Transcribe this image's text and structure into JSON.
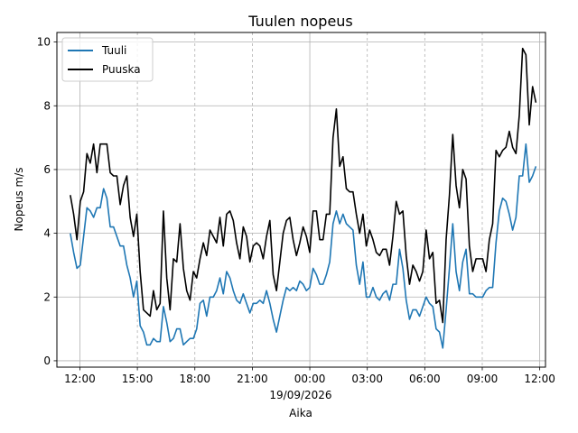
{
  "chart_data": {
    "type": "line",
    "title": "Tuulen nopeus",
    "xlabel": "Aika",
    "ylabel": "Nopeus m/s",
    "date_label": "19/09/2026",
    "x_ticks": [
      "12:00",
      "15:00",
      "18:00",
      "21:00",
      "00:00",
      "03:00",
      "06:00",
      "09:00",
      "12:00"
    ],
    "x_tick_hours": [
      12,
      15,
      18,
      21,
      24,
      27,
      30,
      33,
      36
    ],
    "xlim_hours": [
      10.8,
      36.3
    ],
    "y_ticks": [
      "0",
      "2",
      "4",
      "6",
      "8",
      "10"
    ],
    "y_tick_values": [
      0,
      2,
      4,
      6,
      8,
      10
    ],
    "ylim": [
      -0.2,
      10.3
    ],
    "grid": {
      "y": "solid",
      "x_major": "solid",
      "x_minor": "dashed",
      "color": "#b0b0b0"
    },
    "legend_position": "top-left",
    "series": [
      {
        "name": "Tuuli",
        "color": "#1f77b4",
        "values": [
          4.0,
          3.4,
          2.9,
          3.0,
          3.9,
          4.8,
          4.7,
          4.5,
          4.8,
          4.8,
          5.4,
          5.1,
          4.2,
          4.2,
          3.9,
          3.6,
          3.6,
          3.0,
          2.6,
          2.0,
          2.5,
          1.1,
          0.9,
          0.5,
          0.5,
          0.7,
          0.6,
          0.6,
          1.7,
          1.2,
          0.6,
          0.7,
          1.0,
          1.0,
          0.5,
          0.6,
          0.7,
          0.7,
          1.0,
          1.8,
          1.9,
          1.4,
          2.0,
          2.0,
          2.2,
          2.6,
          2.1,
          2.8,
          2.6,
          2.2,
          1.9,
          1.8,
          2.1,
          1.8,
          1.5,
          1.8,
          1.8,
          1.9,
          1.8,
          2.2,
          1.8,
          1.3,
          0.9,
          1.4,
          1.9,
          2.3,
          2.2,
          2.3,
          2.2,
          2.5,
          2.4,
          2.2,
          2.3,
          2.9,
          2.7,
          2.4,
          2.4,
          2.7,
          3.1,
          4.3,
          4.7,
          4.3,
          4.6,
          4.3,
          4.2,
          4.1,
          3.0,
          2.4,
          3.1,
          2.0,
          2.0,
          2.3,
          2.0,
          1.9,
          2.1,
          2.2,
          1.9,
          2.4,
          2.4,
          3.5,
          2.9,
          1.9,
          1.3,
          1.6,
          1.6,
          1.4,
          1.7,
          2.0,
          1.8,
          1.7,
          1.0,
          0.9,
          0.4,
          1.6,
          2.9,
          4.3,
          2.8,
          2.2,
          3.1,
          3.5,
          2.1,
          2.1,
          2.0,
          2.0,
          2.0,
          2.2,
          2.3,
          2.3,
          3.7,
          4.7,
          5.1,
          5.0,
          4.6,
          4.1,
          4.5,
          5.8,
          5.8,
          6.8,
          5.6,
          5.8,
          6.1
        ]
      },
      {
        "name": "Puuska",
        "color": "#000000",
        "values": [
          5.2,
          4.6,
          3.8,
          5.0,
          5.3,
          6.5,
          6.2,
          6.8,
          5.9,
          6.8,
          6.8,
          6.8,
          5.9,
          5.8,
          5.8,
          4.9,
          5.5,
          5.8,
          4.5,
          3.9,
          4.6,
          2.8,
          1.6,
          1.5,
          1.4,
          2.2,
          1.6,
          1.8,
          4.7,
          2.6,
          1.6,
          3.2,
          3.1,
          4.3,
          2.9,
          2.2,
          1.9,
          2.8,
          2.6,
          3.2,
          3.7,
          3.3,
          4.1,
          3.9,
          3.7,
          4.5,
          3.6,
          4.6,
          4.7,
          4.4,
          3.7,
          3.2,
          4.2,
          3.9,
          3.1,
          3.6,
          3.7,
          3.6,
          3.2,
          3.9,
          4.4,
          2.7,
          2.2,
          3.1,
          4.0,
          4.4,
          4.5,
          3.8,
          3.3,
          3.7,
          4.2,
          3.9,
          3.4,
          4.7,
          4.7,
          3.8,
          3.8,
          4.6,
          4.6,
          7.0,
          7.9,
          6.1,
          6.4,
          5.4,
          5.3,
          5.3,
          4.6,
          4.0,
          4.6,
          3.6,
          4.1,
          3.8,
          3.4,
          3.3,
          3.5,
          3.5,
          3.0,
          3.9,
          5.0,
          4.6,
          4.7,
          3.3,
          2.4,
          3.0,
          2.8,
          2.5,
          2.8,
          4.1,
          3.2,
          3.4,
          1.8,
          1.9,
          1.2,
          3.8,
          5.2,
          7.1,
          5.5,
          4.8,
          6.0,
          5.7,
          3.6,
          2.8,
          3.2,
          3.2,
          3.2,
          2.8,
          3.8,
          4.3,
          6.6,
          6.4,
          6.6,
          6.7,
          7.2,
          6.7,
          6.5,
          7.7,
          9.8,
          9.6,
          7.4,
          8.6,
          8.1
        ]
      }
    ],
    "x_start_hour": 11.5,
    "x_end_hour": 35.8
  }
}
